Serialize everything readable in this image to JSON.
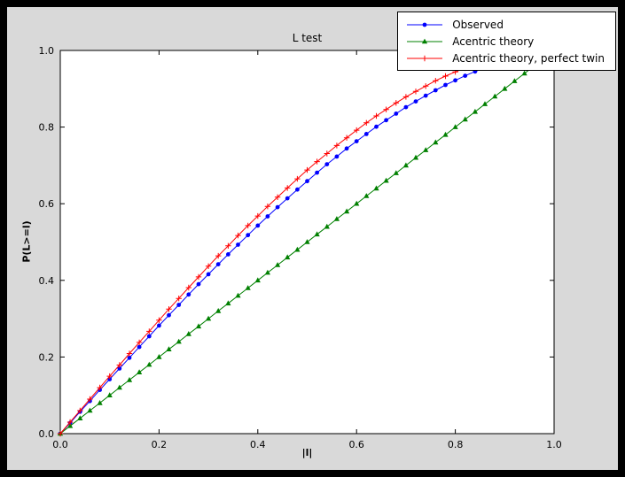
{
  "figure": {
    "frame_background": "#000000",
    "figure_background": "#d9d9d9",
    "plot_background": "#ffffff",
    "axes_color": "#000000"
  },
  "chart_data": {
    "type": "line",
    "title": "L test",
    "xlabel": "|l|",
    "ylabel": "P(L>=l)",
    "xlim": [
      0.0,
      1.0
    ],
    "ylim": [
      0.0,
      1.0
    ],
    "grid": false,
    "xticks": [
      0.0,
      0.2,
      0.4,
      0.6,
      0.8,
      1.0
    ],
    "yticks": [
      0.0,
      0.2,
      0.4,
      0.6,
      0.8,
      1.0
    ],
    "xtick_labels": [
      "0.0",
      "0.2",
      "0.4",
      "0.6",
      "0.8",
      "1.0"
    ],
    "ytick_labels": [
      "0.0",
      "0.2",
      "0.4",
      "0.6",
      "0.8",
      "1.0"
    ],
    "legend": {
      "position": "upper-right"
    },
    "series": [
      {
        "name": "Observed",
        "color": "#0000ff",
        "marker": "circle",
        "x": [
          0.0,
          0.02,
          0.04,
          0.06,
          0.08,
          0.1,
          0.12,
          0.14,
          0.16,
          0.18,
          0.2,
          0.22,
          0.24,
          0.26,
          0.28,
          0.3,
          0.32,
          0.34,
          0.36,
          0.38,
          0.4,
          0.42,
          0.44,
          0.46,
          0.48,
          0.5,
          0.52,
          0.54,
          0.56,
          0.58,
          0.6,
          0.62,
          0.64,
          0.66,
          0.68,
          0.7,
          0.72,
          0.74,
          0.76,
          0.78,
          0.8,
          0.82,
          0.84,
          0.86
        ],
        "y": [
          0.0,
          0.028,
          0.057,
          0.085,
          0.114,
          0.142,
          0.17,
          0.198,
          0.226,
          0.254,
          0.282,
          0.309,
          0.336,
          0.363,
          0.39,
          0.416,
          0.442,
          0.468,
          0.493,
          0.518,
          0.543,
          0.567,
          0.591,
          0.614,
          0.637,
          0.659,
          0.681,
          0.703,
          0.723,
          0.744,
          0.763,
          0.782,
          0.801,
          0.818,
          0.835,
          0.852,
          0.867,
          0.882,
          0.896,
          0.91,
          0.922,
          0.934,
          0.945,
          0.955
        ]
      },
      {
        "name": "Acentric theory",
        "color": "#008000",
        "marker": "triangle",
        "x": [
          0.0,
          0.02,
          0.04,
          0.06,
          0.08,
          0.1,
          0.12,
          0.14,
          0.16,
          0.18,
          0.2,
          0.22,
          0.24,
          0.26,
          0.28,
          0.3,
          0.32,
          0.34,
          0.36,
          0.38,
          0.4,
          0.42,
          0.44,
          0.46,
          0.48,
          0.5,
          0.52,
          0.54,
          0.56,
          0.58,
          0.6,
          0.62,
          0.64,
          0.66,
          0.68,
          0.7,
          0.72,
          0.74,
          0.76,
          0.78,
          0.8,
          0.82,
          0.84,
          0.86,
          0.88,
          0.9,
          0.92,
          0.94,
          0.96
        ],
        "y": [
          0.0,
          0.02,
          0.04,
          0.06,
          0.08,
          0.1,
          0.12,
          0.14,
          0.16,
          0.18,
          0.2,
          0.22,
          0.24,
          0.26,
          0.28,
          0.3,
          0.32,
          0.34,
          0.36,
          0.38,
          0.4,
          0.42,
          0.44,
          0.46,
          0.48,
          0.5,
          0.52,
          0.54,
          0.56,
          0.58,
          0.6,
          0.62,
          0.64,
          0.66,
          0.68,
          0.7,
          0.72,
          0.74,
          0.76,
          0.78,
          0.8,
          0.82,
          0.84,
          0.86,
          0.88,
          0.9,
          0.92,
          0.94,
          0.96
        ]
      },
      {
        "name": "Acentric theory, perfect twin",
        "color": "#ff0000",
        "marker": "plus",
        "x": [
          0.0,
          0.02,
          0.04,
          0.06,
          0.08,
          0.1,
          0.12,
          0.14,
          0.16,
          0.18,
          0.2,
          0.22,
          0.24,
          0.26,
          0.28,
          0.3,
          0.32,
          0.34,
          0.36,
          0.38,
          0.4,
          0.42,
          0.44,
          0.46,
          0.48,
          0.5,
          0.52,
          0.54,
          0.56,
          0.58,
          0.6,
          0.62,
          0.64,
          0.66,
          0.68,
          0.7,
          0.72,
          0.74,
          0.76,
          0.78,
          0.8,
          0.82,
          0.84,
          0.86,
          0.88
        ],
        "y": [
          0.0,
          0.03,
          0.06,
          0.09,
          0.12,
          0.15,
          0.179,
          0.209,
          0.238,
          0.267,
          0.296,
          0.325,
          0.353,
          0.381,
          0.409,
          0.437,
          0.464,
          0.49,
          0.517,
          0.543,
          0.568,
          0.593,
          0.617,
          0.641,
          0.665,
          0.688,
          0.71,
          0.731,
          0.752,
          0.772,
          0.792,
          0.811,
          0.829,
          0.846,
          0.863,
          0.879,
          0.893,
          0.907,
          0.921,
          0.933,
          0.944,
          0.954,
          0.964,
          0.972,
          0.979
        ]
      }
    ]
  }
}
